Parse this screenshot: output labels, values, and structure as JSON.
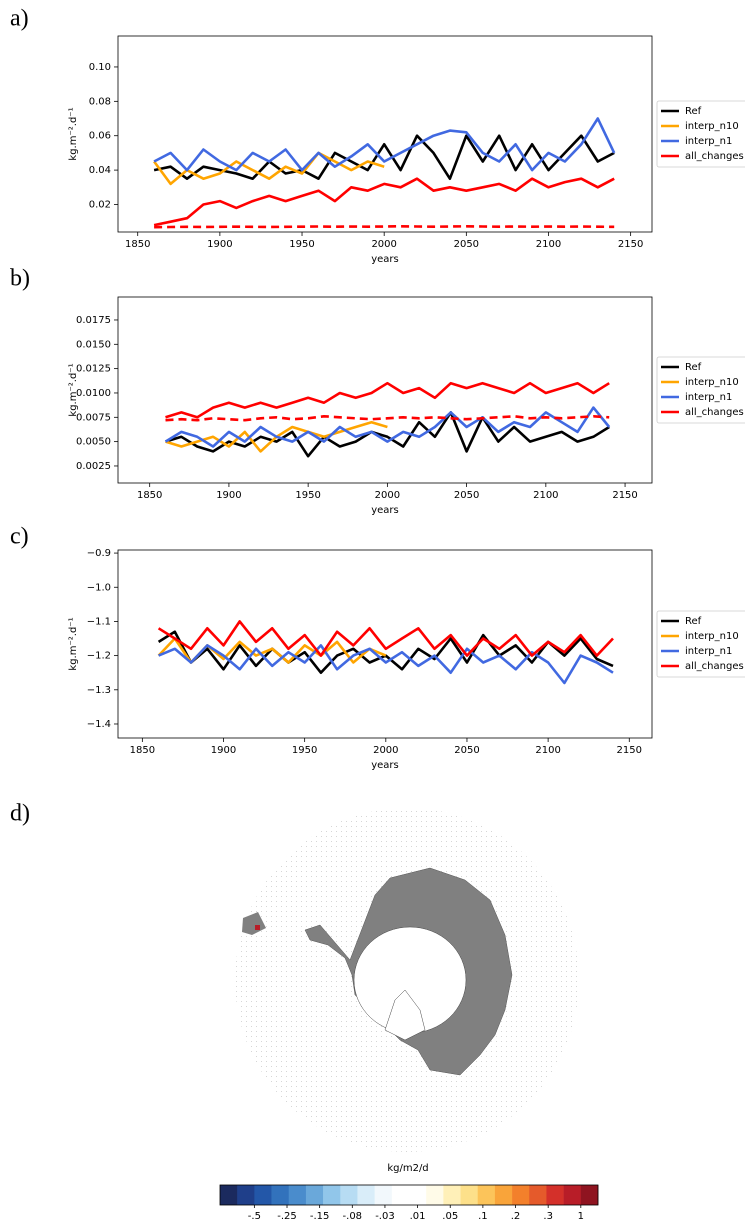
{
  "chart_data": [
    {
      "type": "line",
      "panel": "a)",
      "ylabel": "kg.m⁻².d⁻¹",
      "xlabel": "years",
      "xlim": [
        1838,
        2163
      ],
      "xticks": [
        1850,
        1900,
        1950,
        2000,
        2050,
        2100,
        2150
      ],
      "ylim": [
        0.004,
        0.118
      ],
      "yticks": [
        0.02,
        0.04,
        0.06,
        0.08,
        {
          "value": 0.1,
          "label": "0.10"
        }
      ],
      "legend": "outside right",
      "x": [
        1860,
        1870,
        1880,
        1890,
        1900,
        1910,
        1920,
        1930,
        1940,
        1950,
        1960,
        1970,
        1980,
        1990,
        2000,
        2010,
        2020,
        2030,
        2040,
        2050,
        2060,
        2070,
        2080,
        2090,
        2100,
        2110,
        2120,
        2130,
        2140
      ],
      "series": [
        {
          "name": "Ref",
          "color": "#000000",
          "values": [
            0.04,
            0.042,
            0.035,
            0.042,
            0.04,
            0.038,
            0.035,
            0.045,
            0.038,
            0.04,
            0.035,
            0.05,
            0.045,
            0.04,
            0.055,
            0.04,
            0.06,
            0.05,
            0.035,
            0.06,
            0.045,
            0.06,
            0.04,
            0.055,
            0.04,
            0.05,
            0.06,
            0.045,
            0.05
          ]
        },
        {
          "name": "interp_n10",
          "color": "#ffa500",
          "values": [
            0.045,
            0.032,
            0.04,
            0.035,
            0.038,
            0.045,
            0.04,
            0.035,
            0.042,
            0.038,
            0.05,
            0.045,
            0.04,
            0.045,
            0.042,
            null,
            null,
            null,
            null,
            null,
            null,
            null,
            null,
            null,
            null,
            null,
            null,
            null,
            null
          ]
        },
        {
          "name": "interp_n1",
          "color": "#4169e1",
          "values": [
            0.045,
            0.05,
            0.04,
            0.052,
            0.045,
            0.04,
            0.05,
            0.045,
            0.052,
            0.04,
            0.05,
            0.042,
            0.048,
            0.055,
            0.045,
            0.05,
            0.055,
            0.06,
            0.063,
            0.062,
            0.05,
            0.045,
            0.055,
            0.04,
            0.05,
            0.045,
            0.055,
            0.07,
            0.05
          ]
        },
        {
          "name": "all_changes",
          "color": "#ff0000",
          "values": [
            0.008,
            0.01,
            0.012,
            0.02,
            0.022,
            0.018,
            0.022,
            0.025,
            0.022,
            0.025,
            0.028,
            0.022,
            0.03,
            0.028,
            0.032,
            0.03,
            0.035,
            0.028,
            0.03,
            0.028,
            0.03,
            0.032,
            0.028,
            0.035,
            0.03,
            0.033,
            0.035,
            0.03,
            0.035
          ]
        },
        {
          "color": "#ff0000",
          "dashed": true,
          "values": [
            0.0068,
            0.0069,
            0.007,
            0.0069,
            0.007,
            0.0071,
            0.007,
            0.0069,
            0.007,
            0.0071,
            0.0072,
            0.0071,
            0.0072,
            0.0071,
            0.0072,
            0.0073,
            0.0072,
            0.0071,
            0.0072,
            0.0073,
            0.0072,
            0.0071,
            0.0072,
            0.0071,
            0.0072,
            0.0071,
            0.0072,
            0.0071,
            0.007
          ]
        }
      ]
    },
    {
      "type": "line",
      "panel": "b)",
      "ylabel": "kg.m⁻².d⁻¹",
      "xlabel": "years",
      "xlim": [
        1830,
        2167
      ],
      "xticks": [
        1850,
        1900,
        1950,
        2000,
        2050,
        2100,
        2150
      ],
      "ylim": [
        0.00075,
        0.01986
      ],
      "yticks": [
        0.0025,
        {
          "value": 0.005,
          "label": "0.0050"
        },
        0.0075,
        {
          "value": 0.01,
          "label": "0.0100"
        },
        0.0125,
        {
          "value": 0.015,
          "label": "0.0150"
        },
        0.0175
      ],
      "legend": "outside right",
      "x": [
        1860,
        1870,
        1880,
        1890,
        1900,
        1910,
        1920,
        1930,
        1940,
        1950,
        1960,
        1970,
        1980,
        1990,
        2000,
        2010,
        2020,
        2030,
        2040,
        2050,
        2060,
        2070,
        2080,
        2090,
        2100,
        2110,
        2120,
        2130,
        2140
      ],
      "series": [
        {
          "name": "Ref",
          "color": "#000000",
          "values": [
            0.005,
            0.0055,
            0.0045,
            0.004,
            0.005,
            0.0045,
            0.0055,
            0.005,
            0.006,
            0.0035,
            0.0055,
            0.0045,
            0.005,
            0.006,
            0.0055,
            0.0045,
            0.007,
            0.0055,
            0.008,
            0.004,
            0.0075,
            0.005,
            0.0065,
            0.005,
            0.0055,
            0.006,
            0.005,
            0.0055,
            0.0065
          ]
        },
        {
          "name": "interp_n10",
          "color": "#ffa500",
          "values": [
            0.005,
            0.0045,
            0.005,
            0.0055,
            0.0045,
            0.006,
            0.004,
            0.0055,
            0.0065,
            0.006,
            0.0055,
            0.006,
            0.0065,
            0.007,
            0.0065,
            null,
            null,
            null,
            null,
            null,
            null,
            null,
            null,
            null,
            null,
            null,
            null,
            null,
            null
          ]
        },
        {
          "name": "interp_n1",
          "color": "#4169e1",
          "values": [
            0.005,
            0.006,
            0.0055,
            0.0045,
            0.006,
            0.005,
            0.0065,
            0.0055,
            0.005,
            0.006,
            0.005,
            0.0065,
            0.0055,
            0.006,
            0.005,
            0.006,
            0.0055,
            0.0065,
            0.008,
            0.0065,
            0.0075,
            0.006,
            0.007,
            0.0065,
            0.008,
            0.007,
            0.006,
            0.0085,
            0.0065
          ]
        },
        {
          "name": "all_changes",
          "color": "#ff0000",
          "values": [
            0.0075,
            0.008,
            0.0075,
            0.0085,
            0.009,
            0.0085,
            0.009,
            0.0085,
            0.009,
            0.0095,
            0.009,
            0.01,
            0.0095,
            0.01,
            0.011,
            0.01,
            0.0105,
            0.0095,
            0.011,
            0.0105,
            0.011,
            0.0105,
            0.01,
            0.011,
            0.01,
            0.0105,
            0.011,
            0.01,
            0.011
          ]
        },
        {
          "color": "#ff0000",
          "dashed": true,
          "values": [
            0.0072,
            0.0073,
            0.0072,
            0.0074,
            0.0073,
            0.0072,
            0.0074,
            0.0075,
            0.0073,
            0.0074,
            0.0076,
            0.0075,
            0.0074,
            0.0073,
            0.0074,
            0.0075,
            0.0074,
            0.0075,
            0.0074,
            0.0073,
            0.0074,
            0.0075,
            0.0076,
            0.0074,
            0.0075,
            0.0074,
            0.0075,
            0.0076,
            0.0075
          ]
        }
      ]
    },
    {
      "type": "line",
      "panel": "c)",
      "ylabel": "kg.m⁻².d⁻¹",
      "xlabel": "years",
      "xlim": [
        1835,
        2164
      ],
      "xticks": [
        1850,
        1900,
        1950,
        2000,
        2050,
        2100,
        2150
      ],
      "ylim": [
        -1.441,
        -0.891
      ],
      "yticks": [
        {
          "value": -0.9,
          "label": "−0.9"
        },
        {
          "value": -1.0,
          "label": "−1.0"
        },
        {
          "value": -1.1,
          "label": "−1.1"
        },
        {
          "value": -1.2,
          "label": "−1.2"
        },
        {
          "value": -1.3,
          "label": "−1.3"
        },
        {
          "value": -1.4,
          "label": "−1.4"
        }
      ],
      "legend": "outside right",
      "x": [
        1860,
        1870,
        1880,
        1890,
        1900,
        1910,
        1920,
        1930,
        1940,
        1950,
        1960,
        1970,
        1980,
        1990,
        2000,
        2010,
        2020,
        2030,
        2040,
        2050,
        2060,
        2070,
        2080,
        2090,
        2100,
        2110,
        2120,
        2130,
        2140
      ],
      "series": [
        {
          "name": "Ref",
          "color": "#000000",
          "values": [
            -1.16,
            -1.13,
            -1.22,
            -1.18,
            -1.24,
            -1.17,
            -1.23,
            -1.18,
            -1.22,
            -1.19,
            -1.25,
            -1.2,
            -1.18,
            -1.22,
            -1.2,
            -1.24,
            -1.18,
            -1.21,
            -1.15,
            -1.22,
            -1.14,
            -1.2,
            -1.17,
            -1.22,
            -1.16,
            -1.2,
            -1.15,
            -1.21,
            -1.23
          ]
        },
        {
          "name": "interp_n10",
          "color": "#ffa500",
          "values": [
            -1.2,
            -1.15,
            -1.22,
            -1.17,
            -1.21,
            -1.16,
            -1.2,
            -1.18,
            -1.22,
            -1.17,
            -1.2,
            -1.16,
            -1.22,
            -1.18,
            -1.2,
            null,
            null,
            null,
            null,
            null,
            null,
            null,
            null,
            null,
            null,
            null,
            null,
            null,
            null
          ]
        },
        {
          "name": "interp_n1",
          "color": "#4169e1",
          "values": [
            -1.2,
            -1.18,
            -1.22,
            -1.17,
            -1.2,
            -1.24,
            -1.18,
            -1.23,
            -1.19,
            -1.22,
            -1.17,
            -1.24,
            -1.2,
            -1.18,
            -1.22,
            -1.19,
            -1.23,
            -1.2,
            -1.25,
            -1.18,
            -1.22,
            -1.2,
            -1.24,
            -1.19,
            -1.22,
            -1.28,
            -1.2,
            -1.22,
            -1.25
          ]
        },
        {
          "name": "all_changes",
          "color": "#ff0000",
          "values": [
            -1.12,
            -1.15,
            -1.18,
            -1.12,
            -1.17,
            -1.1,
            -1.16,
            -1.12,
            -1.18,
            -1.14,
            -1.2,
            -1.13,
            -1.17,
            -1.12,
            -1.18,
            -1.15,
            -1.12,
            -1.18,
            -1.14,
            -1.2,
            -1.15,
            -1.18,
            -1.14,
            -1.2,
            -1.16,
            -1.19,
            -1.14,
            -1.2,
            -1.15
          ]
        }
      ]
    },
    {
      "type": "map",
      "panel": "d)",
      "colorbar": {
        "label": "kg/m2/d",
        "colors": [
          "#1b2a5e",
          "#1f3f8a",
          "#2357a8",
          "#3272bc",
          "#4a8ccc",
          "#6aa8da",
          "#91c6ea",
          "#b7dcf3",
          "#d9edf9",
          "#f2f8fc",
          "#ffffff",
          "#ffffff",
          "#fffbe8",
          "#fff0b8",
          "#fde08a",
          "#fcc45a",
          "#f9a43a",
          "#f3802b",
          "#e55a2b",
          "#d4302a",
          "#b81d28",
          "#8f1420"
        ],
        "ticks": [
          {
            "value": -0.5,
            "label": "-.5"
          },
          {
            "value": -0.25,
            "label": "-.25"
          },
          {
            "value": -0.15,
            "label": "-.15"
          },
          {
            "value": -0.08,
            "label": "-.08"
          },
          {
            "value": -0.03,
            "label": "-.03"
          },
          {
            "value": 0.01,
            "label": ".01"
          },
          {
            "value": 0.05,
            "label": ".05"
          },
          {
            "value": 0.1,
            "label": ".1"
          },
          {
            "value": 0.2,
            "label": ".2"
          },
          {
            "value": 0.3,
            "label": ".3"
          },
          1
        ]
      }
    }
  ]
}
